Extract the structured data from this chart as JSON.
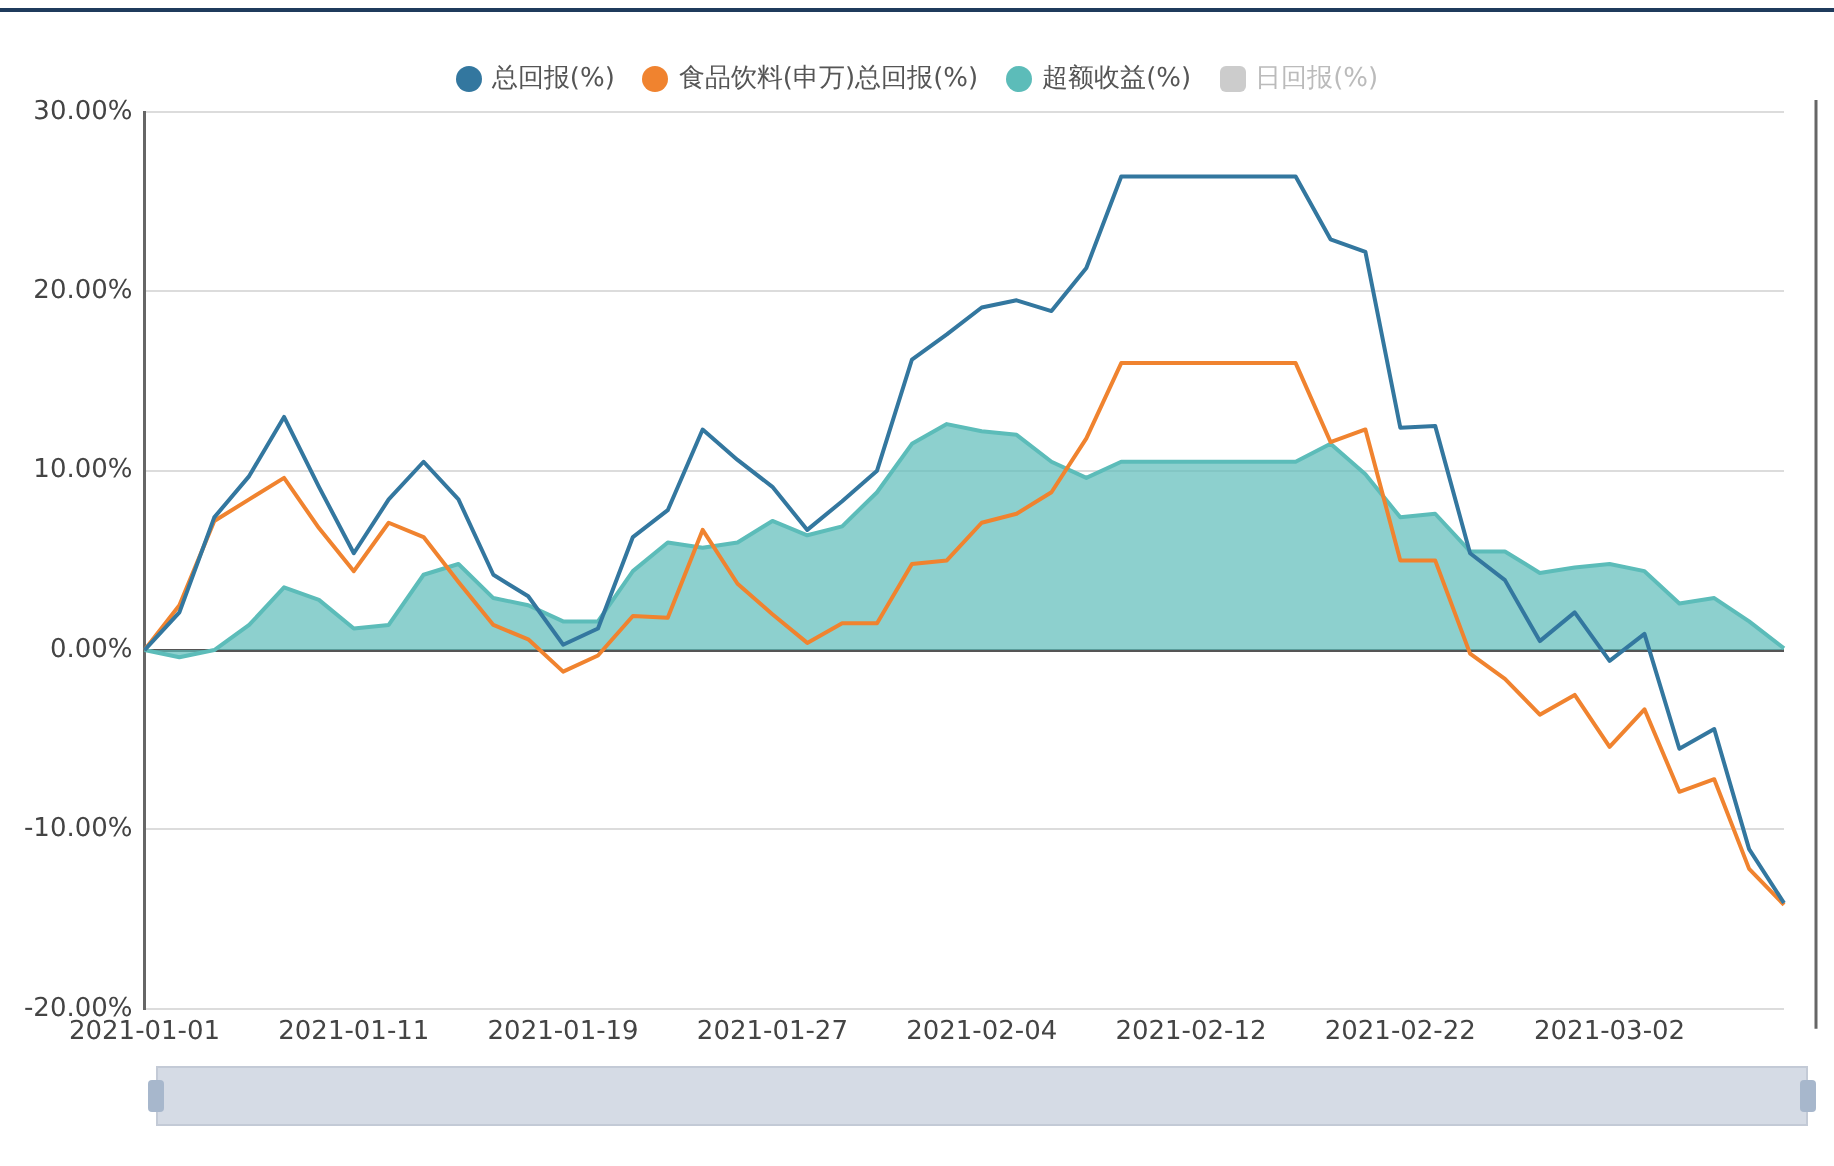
{
  "chart_data": {
    "type": "line",
    "categories": [
      "2021-01-01",
      null,
      null,
      null,
      null,
      null,
      "2021-01-11",
      null,
      null,
      null,
      null,
      null,
      "2021-01-19",
      null,
      null,
      null,
      null,
      null,
      "2021-01-27",
      null,
      null,
      null,
      null,
      null,
      "2021-02-04",
      null,
      null,
      null,
      null,
      null,
      "2021-02-12",
      null,
      null,
      null,
      null,
      null,
      "2021-02-22",
      null,
      null,
      null,
      null,
      null,
      "2021-03-02",
      null,
      null,
      null,
      null,
      null
    ],
    "series": [
      {
        "name": "总回报(%)",
        "color": "#33779f",
        "values": [
          0,
          2.1,
          7.4,
          9.7,
          13.0,
          9.1,
          5.4,
          8.4,
          10.5,
          8.4,
          4.2,
          3.0,
          0.3,
          1.2,
          6.3,
          7.8,
          12.3,
          10.6,
          9.1,
          6.7,
          8.3,
          10.0,
          16.2,
          17.6,
          19.1,
          19.5,
          18.9,
          21.3,
          26.4,
          26.4,
          26.4,
          26.4,
          26.4,
          26.4,
          22.9,
          22.2,
          12.4,
          12.5,
          5.4,
          3.9,
          0.5,
          2.1,
          -0.6,
          0.9,
          -5.5,
          -4.4,
          -11.1,
          -14.1
        ]
      },
      {
        "name": "食品饮料(申万)总回报(%)",
        "color": "#f0832f",
        "values": [
          0,
          2.5,
          7.2,
          8.4,
          9.6,
          6.8,
          4.4,
          7.1,
          6.3,
          3.8,
          1.4,
          0.6,
          -1.2,
          -0.3,
          1.9,
          1.8,
          6.7,
          3.7,
          2.0,
          0.4,
          1.5,
          1.5,
          4.8,
          5.0,
          7.1,
          7.6,
          8.8,
          11.8,
          16.0,
          16.0,
          16.0,
          16.0,
          16.0,
          16.0,
          11.6,
          12.3,
          5.0,
          5.0,
          -0.2,
          -1.6,
          -3.6,
          -2.5,
          -5.4,
          -3.3,
          -7.9,
          -7.2,
          -12.2,
          -14.2
        ]
      },
      {
        "name": "超额收益(%)",
        "type": "area",
        "color": "#5cbcb9",
        "values": [
          0,
          -0.4,
          0,
          1.4,
          3.5,
          2.8,
          1.2,
          1.4,
          4.2,
          4.8,
          2.9,
          2.5,
          1.6,
          1.6,
          4.4,
          6.0,
          5.7,
          6.0,
          7.2,
          6.4,
          6.9,
          8.8,
          11.5,
          12.6,
          12.2,
          12.0,
          10.5,
          9.6,
          10.5,
          10.5,
          10.5,
          10.5,
          10.5,
          10.5,
          11.5,
          9.8,
          7.4,
          7.6,
          5.5,
          5.5,
          4.3,
          4.6,
          4.8,
          4.4,
          2.6,
          2.9,
          1.6,
          0.1
        ]
      },
      {
        "name": "日回报(%)",
        "type": "bar",
        "color": "#cccccc",
        "values": [
          null,
          null,
          null,
          null,
          null,
          null,
          null,
          null,
          null,
          null,
          null,
          null,
          null,
          null,
          null,
          null,
          null,
          null,
          null,
          null,
          null,
          null,
          null,
          null,
          null,
          null,
          null,
          null,
          null,
          null,
          null,
          null,
          null,
          null,
          null,
          null,
          null,
          null,
          null,
          null,
          null,
          null,
          null,
          null,
          null,
          null,
          null,
          null
        ]
      }
    ],
    "ylim": [
      -20,
      30
    ],
    "yticks": [
      {
        "value": -20,
        "label": "-20.00%"
      },
      {
        "value": -10,
        "label": "-10.00%"
      },
      {
        "value": 0,
        "label": "0.00%"
      },
      {
        "value": 10,
        "label": "10.00%"
      },
      {
        "value": 20,
        "label": "20.00%"
      },
      {
        "value": 30,
        "label": "30.00%"
      }
    ],
    "grid": "y",
    "legend": "top",
    "marker": "none",
    "line_style": "solid"
  }
}
